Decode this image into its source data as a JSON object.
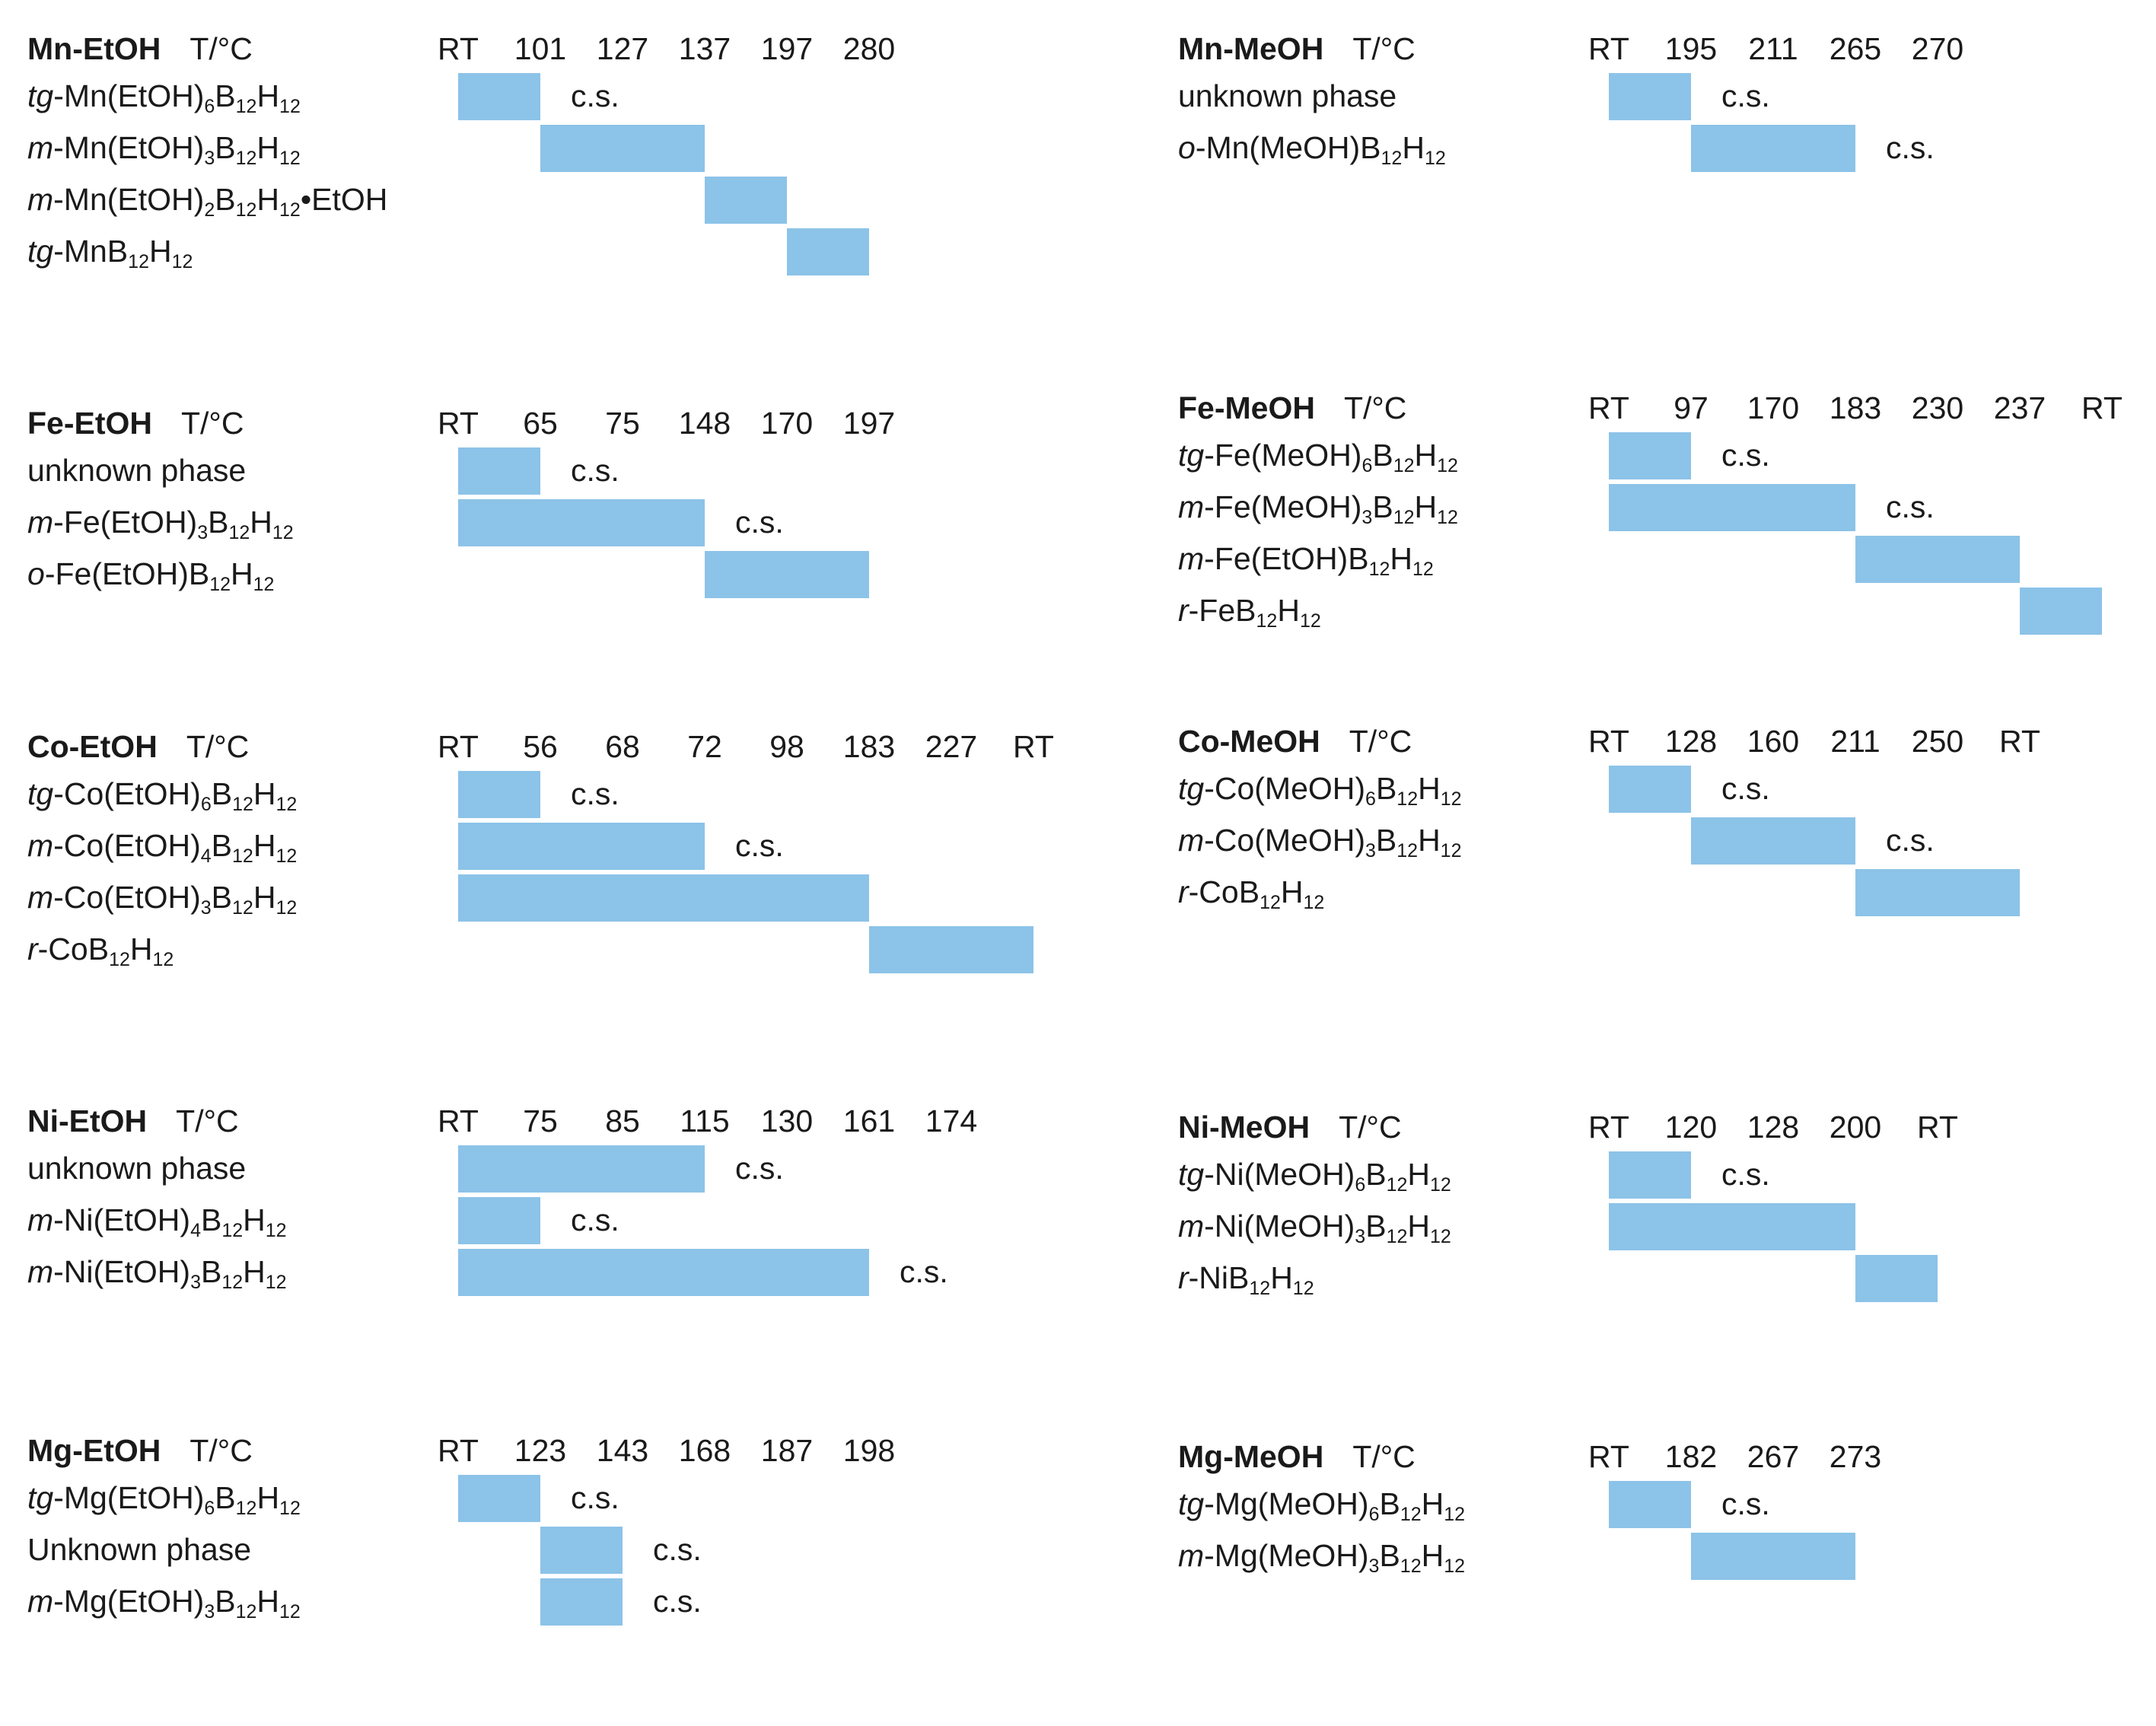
{
  "chart_data": [
    {
      "type": "gantt-phase-diagram",
      "system": "Mn-EtOH",
      "unit": "T/°C",
      "ticks": [
        "RT",
        "101",
        "127",
        "137",
        "197",
        "280"
      ],
      "rows": [
        {
          "prefix": "tg",
          "parts": [
            "-Mn(EtOH)",
            "6",
            "B",
            "12",
            "H",
            "12",
            ""
          ],
          "start": 0,
          "end": 1,
          "cs": "c.s."
        },
        {
          "prefix": "m",
          "parts": [
            "-Mn(EtOH)",
            "3",
            "B",
            "12",
            "H",
            "12",
            ""
          ],
          "start": 1,
          "end": 3,
          "cs": ""
        },
        {
          "prefix": "m",
          "parts": [
            "-Mn(EtOH)",
            "2",
            "B",
            "12",
            "H",
            "12",
            "•EtOH"
          ],
          "start": 3,
          "end": 4,
          "cs": ""
        },
        {
          "prefix": "tg",
          "parts": [
            "-MnB",
            "12",
            "H",
            "12",
            "",
            "",
            ""
          ],
          "start": 4,
          "end": 5,
          "cs": ""
        }
      ]
    },
    {
      "type": "gantt-phase-diagram",
      "system": "Mn-MeOH",
      "unit": "T/°C",
      "ticks": [
        "RT",
        "195",
        "211",
        "265",
        "270"
      ],
      "rows": [
        {
          "prefix": "",
          "parts": [
            "unknown phase",
            "",
            "",
            "",
            "",
            "",
            ""
          ],
          "start": 0,
          "end": 1,
          "cs": "c.s."
        },
        {
          "prefix": "o",
          "parts": [
            "-Mn(MeOH)B",
            "12",
            "H",
            "12",
            "",
            "",
            ""
          ],
          "start": 1,
          "end": 3,
          "cs": "c.s."
        }
      ]
    },
    {
      "type": "gantt-phase-diagram",
      "system": "Fe-EtOH",
      "unit": "T/°C",
      "ticks": [
        "RT",
        "65",
        "75",
        "148",
        "170",
        "197"
      ],
      "rows": [
        {
          "prefix": "",
          "parts": [
            "unknown phase",
            "",
            "",
            "",
            "",
            "",
            ""
          ],
          "start": 0,
          "end": 1,
          "cs": "c.s."
        },
        {
          "prefix": "m",
          "parts": [
            "-Fe(EtOH)",
            "3",
            "B",
            "12",
            "H",
            "12",
            ""
          ],
          "start": 0,
          "end": 3,
          "cs": "c.s."
        },
        {
          "prefix": "o",
          "parts": [
            "-Fe(EtOH)B",
            "12",
            "H",
            "12",
            "",
            "",
            ""
          ],
          "start": 3,
          "end": 5,
          "cs": ""
        }
      ]
    },
    {
      "type": "gantt-phase-diagram",
      "system": "Fe-MeOH",
      "unit": "T/°C",
      "ticks": [
        "RT",
        "97",
        "170",
        "183",
        "230",
        "237",
        "RT"
      ],
      "rows": [
        {
          "prefix": "tg",
          "parts": [
            "-Fe(MeOH)",
            "6",
            "B",
            "12",
            "H",
            "12",
            ""
          ],
          "start": 0,
          "end": 1,
          "cs": "c.s."
        },
        {
          "prefix": "m",
          "parts": [
            "-Fe(MeOH)",
            "3",
            "B",
            "12",
            "H",
            "12",
            ""
          ],
          "start": 0,
          "end": 3,
          "cs": "c.s."
        },
        {
          "prefix": "m",
          "parts": [
            "-Fe(EtOH)B",
            "12",
            "H",
            "12",
            "",
            "",
            ""
          ],
          "start": 3,
          "end": 5,
          "cs": ""
        },
        {
          "prefix": "r",
          "parts": [
            "-FeB",
            "12",
            "H",
            "12",
            "",
            "",
            ""
          ],
          "start": 5,
          "end": 6,
          "cs": ""
        }
      ]
    },
    {
      "type": "gantt-phase-diagram",
      "system": "Co-EtOH",
      "unit": "T/°C",
      "ticks": [
        "RT",
        "56",
        "68",
        "72",
        "98",
        "183",
        "227",
        "RT"
      ],
      "rows": [
        {
          "prefix": "tg",
          "parts": [
            "-Co(EtOH)",
            "6",
            "B",
            "12",
            "H",
            "12",
            ""
          ],
          "start": 0,
          "end": 1,
          "cs": "c.s."
        },
        {
          "prefix": "m",
          "parts": [
            "-Co(EtOH)",
            "4",
            "B",
            "12",
            "H",
            "12",
            ""
          ],
          "start": 0,
          "end": 3,
          "cs": "c.s."
        },
        {
          "prefix": "m",
          "parts": [
            "-Co(EtOH)",
            "3",
            "B",
            "12",
            "H",
            "12",
            ""
          ],
          "start": 0,
          "end": 5,
          "cs": ""
        },
        {
          "prefix": "r",
          "parts": [
            "-CoB",
            "12",
            "H",
            "12",
            "",
            "",
            ""
          ],
          "start": 5,
          "end": 7,
          "cs": ""
        }
      ]
    },
    {
      "type": "gantt-phase-diagram",
      "system": "Co-MeOH",
      "unit": "T/°C",
      "ticks": [
        "RT",
        "128",
        "160",
        "211",
        "250",
        "RT"
      ],
      "rows": [
        {
          "prefix": "tg",
          "parts": [
            "-Co(MeOH)",
            "6",
            "B",
            "12",
            "H",
            "12",
            ""
          ],
          "start": 0,
          "end": 1,
          "cs": "c.s."
        },
        {
          "prefix": "m",
          "parts": [
            "-Co(MeOH)",
            "3",
            "B",
            "12",
            "H",
            "12",
            ""
          ],
          "start": 1,
          "end": 3,
          "cs": "c.s."
        },
        {
          "prefix": "r",
          "parts": [
            "-CoB",
            "12",
            "H",
            "12",
            "",
            "",
            ""
          ],
          "start": 3,
          "end": 5,
          "cs": ""
        }
      ]
    },
    {
      "type": "gantt-phase-diagram",
      "system": "Ni-EtOH",
      "unit": "T/°C",
      "ticks": [
        "RT",
        "75",
        "85",
        "115",
        "130",
        "161",
        "174"
      ],
      "rows": [
        {
          "prefix": "",
          "parts": [
            "unknown phase",
            "",
            "",
            "",
            "",
            "",
            ""
          ],
          "start": 0,
          "end": 3,
          "cs": "c.s."
        },
        {
          "prefix": "m",
          "parts": [
            "-Ni(EtOH)",
            "4",
            "B",
            "12",
            "H",
            "12",
            ""
          ],
          "start": 0,
          "end": 1,
          "cs": "c.s."
        },
        {
          "prefix": "m",
          "parts": [
            "-Ni(EtOH)",
            "3",
            "B",
            "12",
            "H",
            "12",
            ""
          ],
          "start": 0,
          "end": 5,
          "cs": "c.s."
        }
      ]
    },
    {
      "type": "gantt-phase-diagram",
      "system": "Ni-MeOH",
      "unit": "T/°C",
      "ticks": [
        "RT",
        "120",
        "128",
        "200",
        "RT"
      ],
      "rows": [
        {
          "prefix": "tg",
          "parts": [
            "-Ni(MeOH)",
            "6",
            "B",
            "12",
            "H",
            "12",
            ""
          ],
          "start": 0,
          "end": 1,
          "cs": "c.s."
        },
        {
          "prefix": "m",
          "parts": [
            "-Ni(MeOH)",
            "3",
            "B",
            "12",
            "H",
            "12",
            ""
          ],
          "start": 0,
          "end": 3,
          "cs": ""
        },
        {
          "prefix": "r",
          "parts": [
            "-NiB",
            "12",
            "H",
            "12",
            "",
            "",
            ""
          ],
          "start": 3,
          "end": 4,
          "cs": ""
        }
      ]
    },
    {
      "type": "gantt-phase-diagram",
      "system": "Mg-EtOH",
      "unit": "T/°C",
      "ticks": [
        "RT",
        "123",
        "143",
        "168",
        "187",
        "198"
      ],
      "rows": [
        {
          "prefix": "tg",
          "parts": [
            "-Mg(EtOH)",
            "6",
            "B",
            "12",
            "H",
            "12",
            ""
          ],
          "start": 0,
          "end": 1,
          "cs": "c.s."
        },
        {
          "prefix": "",
          "parts": [
            "Unknown phase",
            "",
            "",
            "",
            "",
            "",
            ""
          ],
          "start": 1,
          "end": 2,
          "cs": "c.s."
        },
        {
          "prefix": "m",
          "parts": [
            "-Mg(EtOH)",
            "3",
            "B",
            "12",
            "H",
            "12",
            ""
          ],
          "start": 1,
          "end": 2,
          "cs": "c.s."
        }
      ]
    },
    {
      "type": "gantt-phase-diagram",
      "system": "Mg-MeOH",
      "unit": "T/°C",
      "ticks": [
        "RT",
        "182",
        "267",
        "273"
      ],
      "rows": [
        {
          "prefix": "tg",
          "parts": [
            "-Mg(MeOH)",
            "6",
            "B",
            "12",
            "H",
            "12",
            ""
          ],
          "start": 0,
          "end": 1,
          "cs": "c.s."
        },
        {
          "prefix": "m",
          "parts": [
            "-Mg(MeOH)",
            "3",
            "B",
            "12",
            "H",
            "12",
            ""
          ],
          "start": 1,
          "end": 3,
          "cs": ""
        }
      ]
    }
  ],
  "colors": {
    "bar": "#8cc3e8",
    "text": "#1a1a1a",
    "background": "#ffffff"
  }
}
